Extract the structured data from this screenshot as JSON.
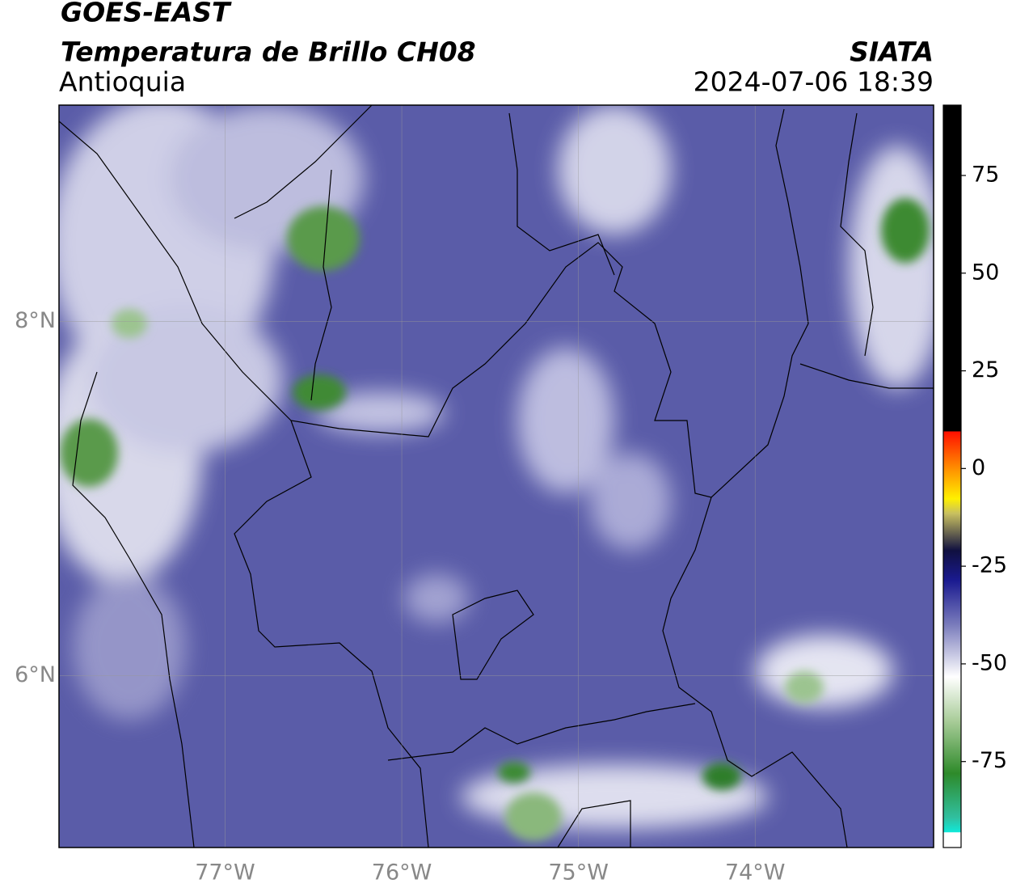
{
  "header": {
    "title": "GOES-EAST",
    "subtitle": "Temperatura de Brillo CH08",
    "region": "Antioquia",
    "source": "SIATA",
    "timestamp": "2024-07-06 18:39"
  },
  "map": {
    "xlim": [
      -77.94,
      -72.99
    ],
    "ylim": [
      5.03,
      9.22
    ],
    "xticks": [
      {
        "value": -77,
        "label": "77°W"
      },
      {
        "value": -76,
        "label": "76°W"
      },
      {
        "value": -75,
        "label": "75°W"
      },
      {
        "value": -74,
        "label": "74°W"
      }
    ],
    "yticks": [
      {
        "value": 8,
        "label": "8°N"
      },
      {
        "value": 6,
        "label": "6°N"
      }
    ]
  },
  "colorbar": {
    "lim": [
      -97,
      93
    ],
    "ticks": [
      75,
      50,
      25,
      0,
      -25,
      -50,
      -75
    ]
  }
}
